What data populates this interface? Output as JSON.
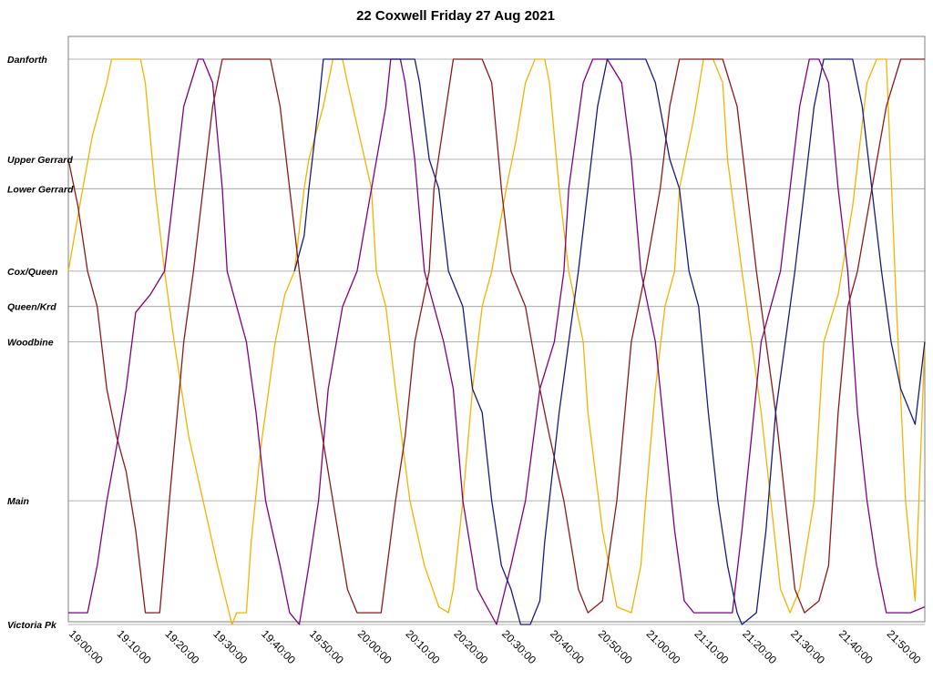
{
  "chart_data": {
    "type": "line",
    "title": "22 Coxwell Friday 27 Aug 2021",
    "xlabel": "",
    "ylabel": "",
    "x_range": [
      "19:00:00",
      "21:58:00"
    ],
    "x_ticks": [
      "19:00:00",
      "19:10:00",
      "19:20:00",
      "19:30:00",
      "19:40:00",
      "19:50:00",
      "20:00:00",
      "20:10:00",
      "20:20:00",
      "20:30:00",
      "20:40:00",
      "20:50:00",
      "21:00:00",
      "21:10:00",
      "21:20:00",
      "21:30:00",
      "21:40:00",
      "21:50:00"
    ],
    "stops": [
      {
        "name": "Danforth",
        "pos": 0
      },
      {
        "name": "Upper Gerrard",
        "pos": 17
      },
      {
        "name": "Lower Gerrard",
        "pos": 22
      },
      {
        "name": "Cox/Queen",
        "pos": 36
      },
      {
        "name": "Queen/Krd",
        "pos": 42
      },
      {
        "name": "Woodbine",
        "pos": 48
      },
      {
        "name": "Main",
        "pos": 75
      },
      {
        "name": "Victoria Pk",
        "pos": 96
      }
    ],
    "y_range": [
      0,
      96
    ],
    "legend": "none",
    "grid": true,
    "series": [
      {
        "color": "#F2B400",
        "x": [
          "19:00:00",
          "19:03:00",
          "19:05:00",
          "19:08:00",
          "19:09:00",
          "19:15:00",
          "19:16:00",
          "19:18:00",
          "19:20:00",
          "19:22:00",
          "19:25:00",
          "19:28:00",
          "19:31:00",
          "19:34:00",
          "19:35:00",
          "19:37:00",
          "19:38:00",
          "19:40:00",
          "19:43:00",
          "19:45:00",
          "19:47:00",
          "19:49:00",
          "19:50:00",
          "19:53:00",
          "19:55:00",
          "19:57:00",
          "19:58:00",
          "20:03:00",
          "20:04:00",
          "20:06:00",
          "20:08:00",
          "20:11:00",
          "20:14:00",
          "20:17:00",
          "20:19:00",
          "20:20:00",
          "20:22:00",
          "20:24:00",
          "20:26:00",
          "20:28:00",
          "20:31:00",
          "20:33:00",
          "20:35:00",
          "20:37:00",
          "20:39:00",
          "20:40:00",
          "20:42:00",
          "20:44:00",
          "20:47:00",
          "20:48:00",
          "20:51:00",
          "20:54:00",
          "20:57:00",
          "20:59:00",
          "21:00:00",
          "21:02:00",
          "21:04:00",
          "21:06:00",
          "21:07:00",
          "21:10:00",
          "21:12:00",
          "21:14:00",
          "21:16:00",
          "21:17:00",
          "21:20:00",
          "21:22:00",
          "21:24:00",
          "21:26:00",
          "21:28:00",
          "21:30:00",
          "21:32:00",
          "21:35:00",
          "21:37:00",
          "21:40:00",
          "21:43:00",
          "21:46:00",
          "21:48:00",
          "21:50:00",
          "21:52:00",
          "21:54:00",
          "21:56:00",
          "21:58:00"
        ],
        "y": [
          36,
          22,
          13,
          4,
          0,
          0,
          4,
          22,
          36,
          48,
          64,
          75,
          86,
          96,
          94,
          94,
          82,
          66,
          48,
          40,
          36,
          22,
          17,
          8,
          0,
          0,
          4,
          22,
          36,
          42,
          56,
          75,
          86,
          93,
          94,
          90,
          75,
          56,
          42,
          36,
          22,
          14,
          4,
          0,
          0,
          4,
          22,
          36,
          48,
          60,
          80,
          93,
          94,
          86,
          75,
          56,
          42,
          36,
          22,
          10,
          0,
          0,
          4,
          17,
          36,
          48,
          60,
          75,
          90,
          94,
          90,
          75,
          48,
          40,
          25,
          4,
          0,
          0,
          40,
          75,
          92,
          48
        ]
      },
      {
        "color": "#800080",
        "x": [
          "19:00:00",
          "19:04:00",
          "19:06:00",
          "19:08:00",
          "19:10:00",
          "19:12:00",
          "19:14:00",
          "19:17:00",
          "19:20:00",
          "19:22:00",
          "19:24:00",
          "19:27:00",
          "19:28:00",
          "19:30:00",
          "19:32:00",
          "19:33:00",
          "19:35:00",
          "19:37:00",
          "19:39:00",
          "19:41:00",
          "19:44:00",
          "19:46:00",
          "19:48:00",
          "19:50:00",
          "19:52:00",
          "19:54:00",
          "19:57:00",
          "20:00:00",
          "20:03:00",
          "20:06:00",
          "20:07:00",
          "20:09:00",
          "20:10:00",
          "20:12:00",
          "20:14:00",
          "20:16:00",
          "20:18:00",
          "20:20:00",
          "20:22:00",
          "20:25:00",
          "20:27:00",
          "20:29:00",
          "20:32:00",
          "20:35:00",
          "20:38:00",
          "20:41:00",
          "20:43:00",
          "20:44:00",
          "20:47:00",
          "20:49:00",
          "20:52:00",
          "20:55:00",
          "20:57:00",
          "20:59:00",
          "21:02:00",
          "21:04:00",
          "21:06:00",
          "21:08:00",
          "21:10:00",
          "21:12:00",
          "21:14:00",
          "21:18:00",
          "21:20:00",
          "21:22:00",
          "21:24:00",
          "21:26:00",
          "21:28:00",
          "21:30:00",
          "21:32:00",
          "21:34:00",
          "21:36:00",
          "21:38:00",
          "21:40:00",
          "21:42:00",
          "21:44:00",
          "21:46:00",
          "21:48:00",
          "21:50:00",
          "21:52:00",
          "21:55:00",
          "21:58:00"
        ],
        "y": [
          94,
          94,
          86,
          75,
          66,
          56,
          43,
          40,
          36,
          22,
          8,
          0,
          0,
          4,
          22,
          36,
          42,
          48,
          60,
          75,
          86,
          94,
          96,
          86,
          75,
          56,
          42,
          36,
          22,
          8,
          0,
          0,
          4,
          17,
          36,
          42,
          48,
          56,
          75,
          90,
          93,
          96,
          86,
          75,
          56,
          48,
          36,
          22,
          4,
          0,
          0,
          4,
          17,
          36,
          48,
          64,
          80,
          92,
          94,
          94,
          94,
          94,
          80,
          64,
          48,
          42,
          36,
          22,
          8,
          0,
          0,
          4,
          22,
          36,
          60,
          75,
          86,
          94,
          94,
          94,
          93
        ]
      },
      {
        "color": "#8B1A1A",
        "x": [
          "19:00:00",
          "19:02:00",
          "19:04:00",
          "19:06:00",
          "19:08:00",
          "19:10:00",
          "19:12:00",
          "19:14:00",
          "19:16:00",
          "19:17:00",
          "19:19:00",
          "19:21:00",
          "19:24:00",
          "19:26:00",
          "19:28:00",
          "19:30:00",
          "19:32:00",
          "19:35:00",
          "19:37:00",
          "19:38:00",
          "19:42:00",
          "19:44:00",
          "19:46:00",
          "19:48:00",
          "19:50:00",
          "19:52:00",
          "19:55:00",
          "19:58:00",
          "20:00:00",
          "20:02:00",
          "20:05:00",
          "20:08:00",
          "20:10:00",
          "20:12:00",
          "20:15:00",
          "20:16:00",
          "20:20:00",
          "20:22:00",
          "20:24:00",
          "20:26:00",
          "20:28:00",
          "20:30:00",
          "20:32:00",
          "20:35:00",
          "20:38:00",
          "20:40:00",
          "20:43:00",
          "20:46:00",
          "20:48:00",
          "20:51:00",
          "20:54:00",
          "20:57:00",
          "21:00:00",
          "21:03:00",
          "21:05:00",
          "21:07:00",
          "21:09:00",
          "21:12:00",
          "21:15:00",
          "21:16:00",
          "21:19:00",
          "21:21:00",
          "21:23:00",
          "21:25:00",
          "21:27:00",
          "21:29:00",
          "21:31:00",
          "21:33:00",
          "21:36:00",
          "21:38:00",
          "21:40:00",
          "21:42:00",
          "21:44:00",
          "21:47:00",
          "21:50:00",
          "21:53:00",
          "21:55:00",
          "21:58:00"
        ],
        "y": [
          17,
          25,
          36,
          42,
          56,
          64,
          70,
          80,
          94,
          94,
          94,
          75,
          48,
          36,
          22,
          8,
          0,
          0,
          0,
          0,
          0,
          8,
          22,
          36,
          48,
          60,
          75,
          90,
          94,
          94,
          94,
          75,
          64,
          48,
          36,
          22,
          0,
          0,
          0,
          0,
          4,
          22,
          36,
          42,
          56,
          64,
          75,
          90,
          94,
          92,
          75,
          48,
          36,
          22,
          8,
          0,
          0,
          0,
          0,
          0,
          8,
          22,
          36,
          48,
          60,
          75,
          90,
          94,
          92,
          86,
          60,
          42,
          36,
          22,
          8,
          0,
          0,
          0
        ]
      },
      {
        "color": "#1A1A80",
        "x": [
          "19:47:00",
          "19:49:00",
          "19:50:00",
          "19:52:00",
          "19:53:00",
          "19:55:00",
          "19:58:00",
          "20:10:00",
          "20:12:00",
          "20:13:00",
          "20:15:00",
          "20:17:00",
          "20:19:00",
          "20:22:00",
          "20:24:00",
          "20:26:00",
          "20:28:00",
          "20:30:00",
          "20:32:00",
          "20:34:00",
          "20:36:00",
          "20:38:00",
          "20:39:00",
          "20:42:00",
          "20:44:00",
          "20:46:00",
          "20:48:00",
          "20:50:00",
          "20:52:00",
          "20:54:00",
          "20:56:00",
          "20:58:00",
          "21:00:00",
          "21:02:00",
          "21:05:00",
          "21:07:00",
          "21:09:00",
          "21:11:00",
          "21:13:00",
          "21:15:00",
          "21:17:00",
          "21:19:00",
          "21:20:00",
          "21:23:00",
          "21:25:00",
          "21:27:00",
          "21:29:00",
          "21:31:00",
          "21:33:00",
          "21:35:00",
          "21:37:00",
          "21:39:00",
          "21:41:00",
          "21:43:00",
          "21:45:00",
          "21:47:00",
          "21:49:00",
          "21:51:00",
          "21:53:00",
          "21:56:00",
          "21:58:00"
        ],
        "y": [
          36,
          30,
          22,
          8,
          0,
          0,
          0,
          0,
          0,
          4,
          17,
          22,
          36,
          42,
          56,
          60,
          75,
          86,
          90,
          96,
          96,
          92,
          82,
          60,
          48,
          36,
          22,
          8,
          0,
          0,
          0,
          0,
          0,
          4,
          17,
          22,
          36,
          42,
          60,
          75,
          86,
          94,
          96,
          94,
          80,
          60,
          48,
          36,
          22,
          8,
          0,
          0,
          0,
          0,
          8,
          22,
          36,
          48,
          56,
          62,
          48
        ]
      }
    ]
  }
}
